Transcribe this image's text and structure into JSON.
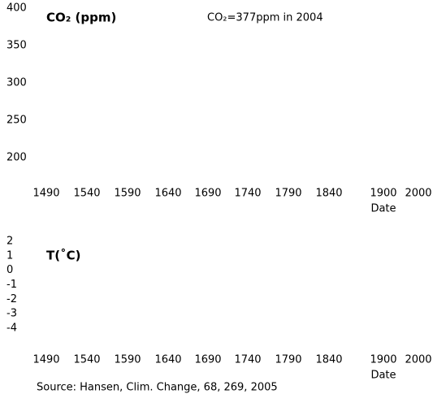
{
  "chart_data": [
    {
      "type": "line",
      "title": "CO₂ (ppm)",
      "annotation": "CO₂=377ppm in 2004",
      "xlabel": "Date",
      "categories": [
        "1490",
        "1540",
        "1590",
        "1640",
        "1690",
        "1740",
        "1790",
        "1840",
        "1900",
        "2000"
      ],
      "ylim": [
        200,
        400
      ],
      "yticks": [
        200,
        250,
        300,
        350,
        400
      ]
    },
    {
      "type": "line",
      "title": "T(˚C)",
      "xlabel": "Date",
      "categories": [
        "1490",
        "1540",
        "1590",
        "1640",
        "1690",
        "1740",
        "1790",
        "1840",
        "1900",
        "2000"
      ],
      "ylim": [
        -4,
        2
      ],
      "yticks": [
        -4,
        -3,
        -2,
        -1,
        0,
        1,
        2
      ]
    }
  ],
  "source": "Source: Hansen, Clim. Change, 68, 269, 2005"
}
